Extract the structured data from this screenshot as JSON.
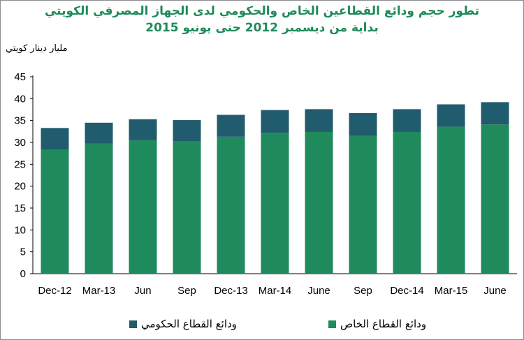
{
  "chart_data": {
    "type": "bar",
    "stacked": true,
    "title": "تطور حجم  ودائع القطاعين الخاص والحكومي لدى الجهاز المصرفي الكويتي",
    "subtitle": "بداية من ديسمبر 2012 حتى يونيو   2015",
    "ylabel": "مليار دينار كويتي",
    "xlabel": "",
    "ylim": [
      0,
      45
    ],
    "yticks": [
      0,
      5,
      10,
      15,
      20,
      25,
      30,
      35,
      40,
      45
    ],
    "categories": [
      "Dec-12",
      "Mar-13",
      "Jun",
      "Sep",
      "Dec-13",
      "Mar-14",
      "June",
      "Sep",
      "Dec-14",
      "Mar-15",
      "June"
    ],
    "series": [
      {
        "name": "ودائع القطاع الخاص",
        "color": "#1f8a5b",
        "values": [
          28.4,
          29.7,
          30.5,
          30.2,
          31.3,
          32.2,
          32.4,
          31.5,
          32.4,
          33.6,
          34.1
        ]
      },
      {
        "name": "ودائع القطاع الحكومي",
        "color": "#215b6e",
        "values": [
          4.9,
          4.8,
          4.8,
          4.9,
          5.0,
          5.2,
          5.2,
          5.2,
          5.2,
          5.1,
          5.1
        ]
      }
    ],
    "grid": false,
    "legend": "bottom"
  }
}
